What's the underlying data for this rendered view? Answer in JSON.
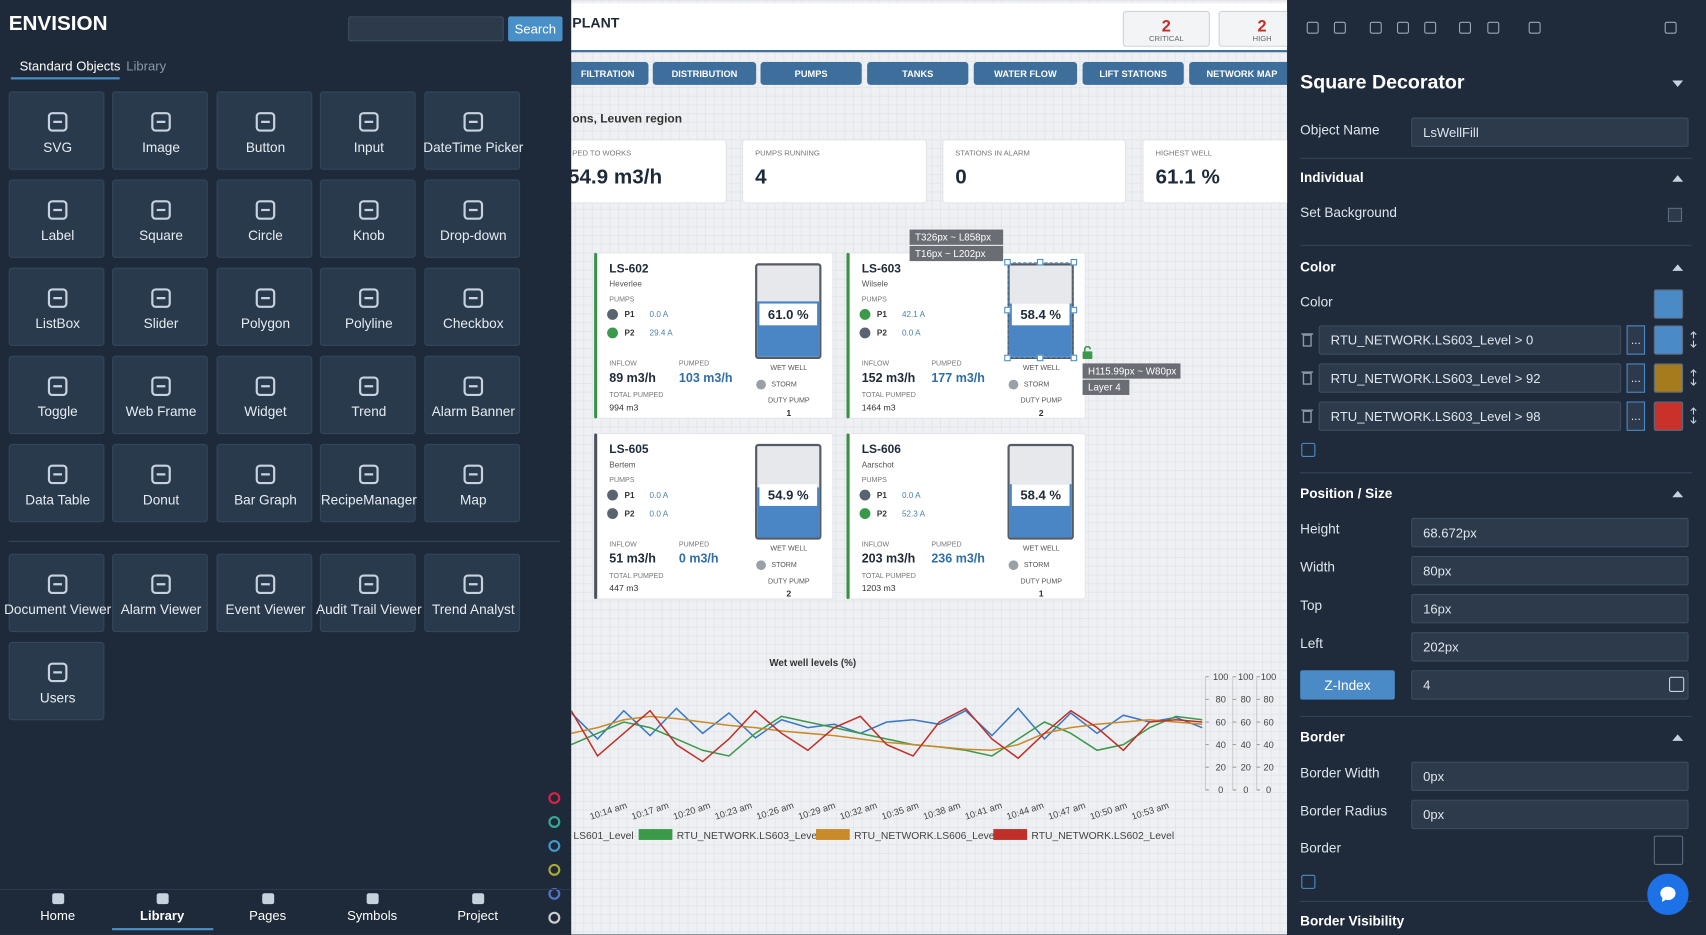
{
  "sidebar": {
    "brand": "ENVISION",
    "search_button": "Search",
    "tabs": [
      "Standard Objects",
      "Library"
    ],
    "objects": [
      "SVG",
      "Image",
      "Button",
      "Input",
      "DateTime Picker",
      "Label",
      "Square",
      "Circle",
      "Knob",
      "Drop-down",
      "ListBox",
      "Slider",
      "Polygon",
      "Polyline",
      "Checkbox",
      "Toggle",
      "Web Frame",
      "Widget",
      "Trend",
      "Alarm Banner",
      "Data Table",
      "Donut",
      "Bar Graph",
      "RecipeManager",
      "Map"
    ],
    "viewers": [
      "Document Viewer",
      "Alarm Viewer",
      "Event Viewer",
      "Audit Trail Viewer",
      "Trend Analyst",
      "Users"
    ],
    "nav": [
      "Home",
      "Library",
      "Pages",
      "Symbols",
      "Project"
    ]
  },
  "canvas": {
    "title": "PLANT",
    "alarms": [
      {
        "count": "2",
        "label": "CRITICAL"
      },
      {
        "count": "2",
        "label": "HIGH"
      }
    ],
    "tabs": [
      "FILTRATION",
      "DISTRIBUTION",
      "PUMPS",
      "TANKS",
      "WATER FLOW",
      "LIFT STATIONS",
      "NETWORK MAP"
    ],
    "region": "ons, Leuven region",
    "kpis": [
      {
        "label": "PED TO WORKS",
        "value": "54.9 m3/h"
      },
      {
        "label": "PUMPS RUNNING",
        "value": "4"
      },
      {
        "label": "STATIONS IN ALARM",
        "value": "0"
      },
      {
        "label": "HIGHEST WELL",
        "value": "61.1 %"
      }
    ],
    "station_labels": {
      "pumps": "PUMPS",
      "inflow": "INFLOW",
      "pumped": "PUMPED",
      "total": "TOTAL PUMPED",
      "wet_well": "WET WELL",
      "storm": "STORM",
      "duty": "DUTY PUMP"
    },
    "stations": [
      {
        "name": "LS-602",
        "location": "Heverlee",
        "status_color": "#3a8f45",
        "pumps": [
          {
            "name": "P1",
            "current": "0.0 A",
            "running": false
          },
          {
            "name": "P2",
            "current": "29.4 A",
            "running": true
          }
        ],
        "inflow": "89 m3/h",
        "pumped": "103 m3/h",
        "total": "994 m3",
        "level": "61.0 %",
        "duty": "1"
      },
      {
        "name": "LS-603",
        "location": "Wilsele",
        "status_color": "#3a8f45",
        "pumps": [
          {
            "name": "P1",
            "current": "42.1 A",
            "running": true
          },
          {
            "name": "P2",
            "current": "0.0 A",
            "running": false
          }
        ],
        "inflow": "152 m3/h",
        "pumped": "177 m3/h",
        "total": "1464 m3",
        "level": "58.4 %",
        "duty": "2"
      },
      {
        "name": "LS-605",
        "location": "Bertem",
        "status_color": "#4a5260",
        "pumps": [
          {
            "name": "P1",
            "current": "0.0 A",
            "running": false
          },
          {
            "name": "P2",
            "current": "0.0 A",
            "running": false
          }
        ],
        "inflow": "51 m3/h",
        "pumped": "0 m3/h",
        "total": "447 m3",
        "level": "54.9 %",
        "duty": "2"
      },
      {
        "name": "LS-606",
        "location": "Aarschot",
        "status_color": "#3a8f45",
        "pumps": [
          {
            "name": "P1",
            "current": "0.0 A",
            "running": false
          },
          {
            "name": "P2",
            "current": "52.3 A",
            "running": true
          }
        ],
        "inflow": "203 m3/h",
        "pumped": "236 m3/h",
        "total": "1203 m3",
        "level": "58.4 %",
        "duty": "1"
      }
    ],
    "selection": {
      "top_left": "T326px ~ L858px",
      "inner": "T16px ~ L202px",
      "size": "H115.99px ~ W80px",
      "layer": "Layer 4"
    },
    "trend": {
      "title": "Wet well levels (%)",
      "ylim": [
        0,
        100
      ],
      "y_axes": [
        [
          0,
          20,
          40,
          60,
          80,
          100
        ],
        [
          0,
          20,
          40,
          60,
          80,
          100
        ],
        [
          0,
          20,
          40,
          60,
          80,
          100
        ]
      ],
      "xticks": [
        "10:14 am",
        "10:17 am",
        "10:20 am",
        "10:23 am",
        "10:26 am",
        "10:29 am",
        "10:32 am",
        "10:35 am",
        "10:38 am",
        "10:41 am",
        "10:44 am",
        "10:47 am",
        "10:50 am",
        "10:53 am"
      ],
      "series": [
        {
          "name": "LS601_Level",
          "color": "#3b78c4",
          "values": [
            68,
            45,
            70,
            48,
            72,
            50,
            68,
            46,
            62,
            55,
            58,
            50,
            60,
            62,
            58,
            70,
            48,
            72,
            45,
            68,
            50,
            66,
            60,
            64,
            55
          ]
        },
        {
          "name": "RTU_NETWORK.LS603_Level",
          "color": "#3a9a4a",
          "values": [
            40,
            50,
            60,
            55,
            45,
            35,
            30,
            50,
            65,
            60,
            55,
            50,
            45,
            40,
            38,
            35,
            30,
            45,
            60,
            50,
            35,
            40,
            55,
            65,
            62
          ]
        },
        {
          "name": "RTU_NETWORK.LS606_Level",
          "color": "#c98a2a",
          "values": [
            50,
            55,
            62,
            65,
            63,
            60,
            57,
            55,
            52,
            50,
            48,
            45,
            42,
            40,
            38,
            36,
            35,
            40,
            50,
            55,
            58,
            60,
            62,
            60,
            58
          ]
        },
        {
          "name": "RTU_NETWORK.LS602_Level",
          "color": "#c0302a",
          "values": [
            70,
            30,
            50,
            70,
            40,
            25,
            45,
            70,
            50,
            35,
            55,
            65,
            40,
            30,
            60,
            72,
            45,
            28,
            50,
            70,
            55,
            35,
            60,
            62,
            60
          ]
        }
      ]
    }
  },
  "properties": {
    "title": "Square Decorator",
    "object_name_label": "Object Name",
    "object_name": "LsWellFill",
    "individual": {
      "title": "Individual",
      "set_background": "Set Background"
    },
    "color": {
      "title": "Color",
      "label": "Color",
      "value": "#4a8ac6",
      "more": "...",
      "rules": [
        {
          "expr": "RTU_NETWORK.LS603_Level > 0",
          "color": "#4a8ac6"
        },
        {
          "expr": "RTU_NETWORK.LS603_Level > 92",
          "color": "#a57b1e"
        },
        {
          "expr": "RTU_NETWORK.LS603_Level > 98",
          "color": "#c9322b"
        }
      ]
    },
    "position": {
      "title": "Position / Size",
      "fields": [
        {
          "label": "Height",
          "value": "68.672px"
        },
        {
          "label": "Width",
          "value": "80px"
        },
        {
          "label": "Top",
          "value": "16px"
        },
        {
          "label": "Left",
          "value": "202px"
        }
      ],
      "zindex_button": "Z-Index",
      "zindex": "4"
    },
    "border": {
      "title": "Border",
      "fields": [
        {
          "label": "Border Width",
          "value": "0px"
        },
        {
          "label": "Border Radius",
          "value": "0px"
        }
      ],
      "border_label": "Border"
    },
    "border_visibility": "Border Visibility"
  }
}
